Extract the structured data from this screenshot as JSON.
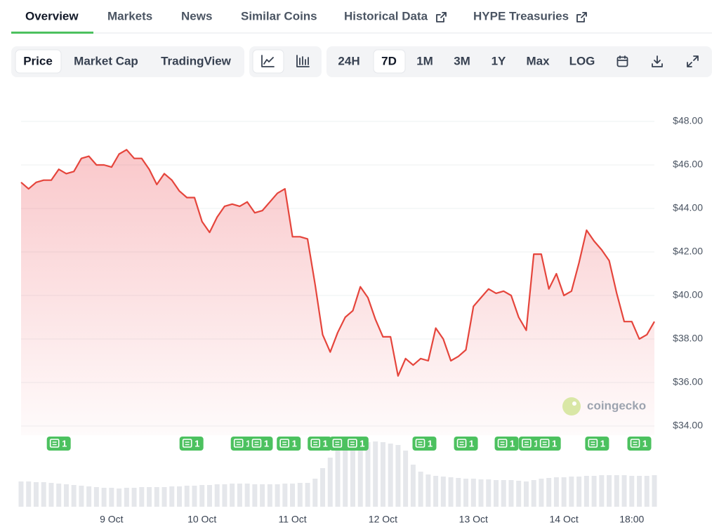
{
  "tabs": [
    "Overview",
    "Markets",
    "News",
    "Similar Coins",
    "Historical Data",
    "HYPE Treasuries"
  ],
  "toolbar": {
    "views": [
      "Price",
      "Market Cap",
      "TradingView"
    ],
    "ranges": [
      "24H",
      "7D",
      "1M",
      "3M",
      "1Y",
      "Max",
      "LOG"
    ]
  },
  "watermark": "coingecko",
  "chart_data": {
    "type": "line",
    "color": "#e5453c",
    "grid": true,
    "values": [
      45.2,
      44.9,
      45.2,
      45.3,
      45.3,
      45.8,
      45.6,
      45.7,
      46.3,
      46.4,
      46.0,
      46.0,
      45.9,
      46.5,
      46.7,
      46.3,
      46.3,
      45.8,
      45.1,
      45.6,
      45.3,
      44.8,
      44.5,
      44.5,
      43.4,
      42.9,
      43.6,
      44.1,
      44.2,
      44.1,
      44.3,
      43.8,
      43.9,
      44.3,
      44.7,
      44.9,
      42.7,
      42.7,
      42.6,
      40.5,
      38.2,
      37.4,
      38.3,
      39.0,
      39.3,
      40.4,
      39.9,
      38.9,
      38.1,
      38.1,
      36.3,
      37.1,
      36.8,
      37.1,
      37.0,
      38.5,
      38.0,
      37.0,
      37.2,
      37.5,
      39.5,
      39.9,
      40.3,
      40.1,
      40.2,
      40.0,
      39.0,
      38.4,
      41.9,
      41.9,
      40.3,
      41.0,
      40.0,
      40.2,
      41.5,
      43.0,
      42.5,
      42.1,
      41.6,
      40.1,
      38.8,
      38.8,
      38.0,
      38.2,
      38.8
    ],
    "volume": [
      36,
      36,
      35,
      35,
      34,
      33,
      32,
      31,
      30,
      29,
      28,
      27,
      27,
      26,
      27,
      27,
      28,
      28,
      28,
      28,
      29,
      29,
      30,
      30,
      31,
      31,
      32,
      32,
      33,
      33,
      33,
      32,
      32,
      32,
      32,
      33,
      33,
      34,
      34,
      40,
      55,
      70,
      85,
      90,
      92,
      93,
      92,
      93,
      92,
      90,
      88,
      80,
      60,
      50,
      46,
      44,
      43,
      42,
      41,
      40,
      40,
      39,
      39,
      38,
      38,
      38,
      37,
      36,
      38,
      40,
      41,
      42,
      42,
      43,
      43,
      44,
      44,
      45,
      45,
      45,
      45,
      44,
      44,
      44,
      45
    ],
    "volume_color": "#e5e7eb",
    "ylim": [
      34,
      48
    ],
    "yticks": [
      {
        "value": 34,
        "label": "$34.00"
      },
      {
        "value": 36,
        "label": "$36.00"
      },
      {
        "value": 38,
        "label": "$38.00"
      },
      {
        "value": 40,
        "label": "$40.00"
      },
      {
        "value": 42,
        "label": "$42.00"
      },
      {
        "value": 44,
        "label": "$44.00"
      },
      {
        "value": 46,
        "label": "$46.00"
      },
      {
        "value": 48,
        "label": "$48.00"
      }
    ],
    "xlim": [
      0,
      84
    ],
    "xticks": [
      {
        "value": 12,
        "label": "9 Oct"
      },
      {
        "value": 24,
        "label": "10 Oct"
      },
      {
        "value": 36,
        "label": "11 Oct"
      },
      {
        "value": 48,
        "label": "12 Oct"
      },
      {
        "value": 60,
        "label": "13 Oct"
      },
      {
        "value": 72,
        "label": "14 Oct"
      },
      {
        "value": 81,
        "label": "18:00"
      }
    ],
    "news_color": "#4cc15f",
    "news_markers": [
      {
        "x": 5,
        "count": 1
      },
      {
        "x": 22.6,
        "count": 1
      },
      {
        "x": 29.4,
        "count": 1
      },
      {
        "x": 31.8,
        "count": 1
      },
      {
        "x": 35.5,
        "count": 1
      },
      {
        "x": 39.6,
        "count": 1
      },
      {
        "x": 42.5,
        "count": 1
      },
      {
        "x": 44.5,
        "count": 1
      },
      {
        "x": 53.5,
        "count": 1
      },
      {
        "x": 59,
        "count": 1
      },
      {
        "x": 64.4,
        "count": 1
      },
      {
        "x": 67.6,
        "count": 1
      },
      {
        "x": 70,
        "count": 1
      },
      {
        "x": 76.4,
        "count": 1
      },
      {
        "x": 82,
        "count": 1
      }
    ]
  }
}
